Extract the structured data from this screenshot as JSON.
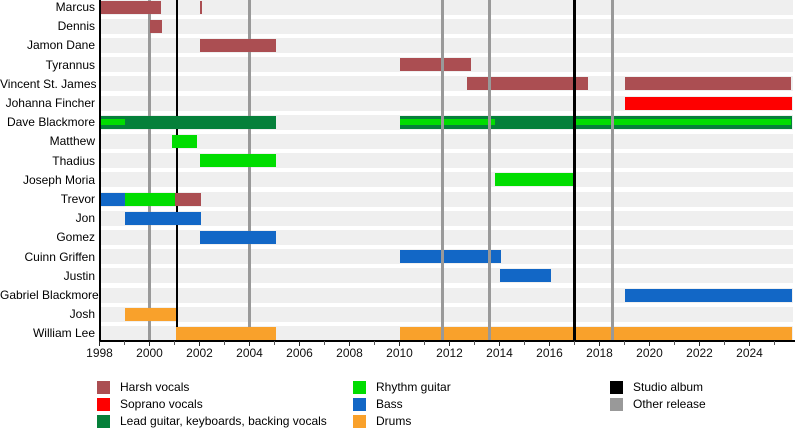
{
  "chart_data": {
    "type": "timeline",
    "description": "Band members timeline (Gantt-style) with roles as colored bars and release lines",
    "x_axis": {
      "start": 1998,
      "end": 2025.9,
      "tick_step": 2,
      "tick_labels": [
        "1998",
        "2000",
        "2002",
        "2004",
        "2006",
        "2008",
        "2010",
        "2012",
        "2014",
        "2016",
        "2018",
        "2020",
        "2022",
        "2024"
      ],
      "tick_years": [
        1998,
        2000,
        2002,
        2004,
        2006,
        2008,
        2010,
        2012,
        2014,
        2016,
        2018,
        2020,
        2022,
        2024
      ],
      "minor_tick_years": [
        1999,
        2001,
        2003,
        2005,
        2007,
        2009,
        2011,
        2013,
        2015,
        2017,
        2019,
        2021,
        2023,
        2025
      ]
    },
    "roles": {
      "harsh": {
        "label": "Harsh vocals",
        "color": "#ab4e52"
      },
      "soprano": {
        "label": "Soprano vocals",
        "color": "#fe0000"
      },
      "lead": {
        "label": "Lead guitar, keyboards, backing vocals",
        "color": "#05803a"
      },
      "rhythm": {
        "label": "Rhythm guitar",
        "color": "#00dd00"
      },
      "bass": {
        "label": "Bass",
        "color": "#1267c6"
      },
      "drums": {
        "label": "Drums",
        "color": "#f9a12b"
      }
    },
    "markers": {
      "studio": {
        "label": "Studio album",
        "color": "#000000"
      },
      "other": {
        "label": "Other release",
        "color": "#999999"
      }
    },
    "members": [
      {
        "name": "Marcus",
        "segments": [
          {
            "role": "harsh",
            "from": 1998.05,
            "to": 2000.45
          },
          {
            "role": "harsh",
            "from": 2002.0,
            "to": 2002.1
          }
        ]
      },
      {
        "name": "Dennis",
        "segments": [
          {
            "role": "harsh",
            "from": 2000.0,
            "to": 2000.5
          }
        ]
      },
      {
        "name": "Jamon Dane",
        "segments": [
          {
            "role": "harsh",
            "from": 2002.0,
            "to": 2005.05
          }
        ]
      },
      {
        "name": "Tyrannus",
        "segments": [
          {
            "role": "harsh",
            "from": 2010.0,
            "to": 2012.85
          }
        ]
      },
      {
        "name": "Vincent St. James",
        "segments": [
          {
            "role": "harsh",
            "from": 2012.7,
            "to": 2017.55
          },
          {
            "role": "harsh",
            "from": 2019.0,
            "to": 2025.65
          }
        ]
      },
      {
        "name": "Johanna Fincher",
        "segments": [
          {
            "role": "soprano",
            "from": 2019.0,
            "to": 2025.7
          }
        ]
      },
      {
        "name": "Dave Blackmore",
        "segments": [
          {
            "role": "lead",
            "from": 1998.05,
            "to": 2005.05
          },
          {
            "role": "lead",
            "from": 2010.0,
            "to": 2025.7
          },
          {
            "role": "rhythm",
            "from": 1998.05,
            "to": 1999.0,
            "overlay": true
          },
          {
            "role": "rhythm",
            "from": 2010.0,
            "to": 2013.8,
            "overlay": true
          },
          {
            "role": "rhythm",
            "from": 2017.0,
            "to": 2025.65,
            "overlay": true
          }
        ]
      },
      {
        "name": "Matthew",
        "segments": [
          {
            "role": "rhythm",
            "from": 2000.9,
            "to": 2001.9
          }
        ]
      },
      {
        "name": "Thadius",
        "segments": [
          {
            "role": "rhythm",
            "from": 2002.0,
            "to": 2005.05
          }
        ]
      },
      {
        "name": "Joseph Moria",
        "segments": [
          {
            "role": "rhythm",
            "from": 2013.8,
            "to": 2017.0
          }
        ]
      },
      {
        "name": "Trevor",
        "segments": [
          {
            "role": "bass",
            "from": 1998.05,
            "to": 1999.0
          },
          {
            "role": "rhythm",
            "from": 1999.0,
            "to": 2001.0
          },
          {
            "role": "harsh",
            "from": 2001.0,
            "to": 2002.05
          }
        ]
      },
      {
        "name": "Jon",
        "segments": [
          {
            "role": "bass",
            "from": 1999.0,
            "to": 2002.05
          }
        ]
      },
      {
        "name": "Gomez",
        "segments": [
          {
            "role": "bass",
            "from": 2002.0,
            "to": 2005.05
          }
        ]
      },
      {
        "name": "Cuinn Griffen",
        "segments": [
          {
            "role": "bass",
            "from": 2010.0,
            "to": 2014.05
          }
        ]
      },
      {
        "name": "Justin",
        "segments": [
          {
            "role": "bass",
            "from": 2014.0,
            "to": 2016.05
          }
        ]
      },
      {
        "name": "Gabriel Blackmore",
        "segments": [
          {
            "role": "bass",
            "from": 2019.0,
            "to": 2025.7
          }
        ]
      },
      {
        "name": "Josh",
        "segments": [
          {
            "role": "drums",
            "from": 1999.0,
            "to": 2001.05
          }
        ]
      },
      {
        "name": "William Lee",
        "segments": [
          {
            "role": "drums",
            "from": 2001.05,
            "to": 2005.05
          },
          {
            "role": "drums",
            "from": 2010.0,
            "to": 2025.7
          }
        ]
      }
    ],
    "releases": [
      {
        "type": "other",
        "year": 2000.0,
        "layer": "back"
      },
      {
        "type": "studio",
        "year": 2001.1,
        "layer": "back"
      },
      {
        "type": "other",
        "year": 2004.0,
        "layer": "back"
      },
      {
        "type": "other",
        "year": 2011.7,
        "layer": "front"
      },
      {
        "type": "other",
        "year": 2013.6,
        "layer": "front"
      },
      {
        "type": "studio",
        "year": 2017.0,
        "layer": "front"
      },
      {
        "type": "other",
        "year": 2018.5,
        "layer": "front"
      }
    ],
    "legend": {
      "columns": [
        [
          "harsh",
          "soprano",
          "lead"
        ],
        [
          "rhythm",
          "bass",
          "drums"
        ],
        [
          "studio",
          "other"
        ]
      ]
    }
  }
}
